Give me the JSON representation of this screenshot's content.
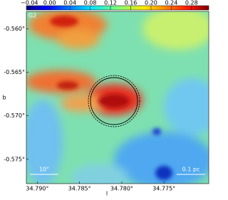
{
  "chart_data": {
    "type": "image",
    "x_label": "l",
    "y_label": "b",
    "xlim": [
      34.7913,
      34.7697
    ],
    "ylim": [
      -0.5778,
      -0.558
    ],
    "xticks": [
      {
        "value": 34.79,
        "label": "34.790°"
      },
      {
        "value": 34.785,
        "label": "34.785°"
      },
      {
        "value": 34.78,
        "label": "34.780°"
      },
      {
        "value": 34.775,
        "label": "34.775°"
      }
    ],
    "yticks": [
      {
        "value": -0.56,
        "label": "-0.560°"
      },
      {
        "value": -0.565,
        "label": "-0.565°"
      },
      {
        "value": -0.57,
        "label": "-0.570°"
      },
      {
        "value": -0.575,
        "label": "-0.575°"
      }
    ],
    "clim": [
      -0.046,
      0.314
    ],
    "cticks": [
      {
        "value": -0.04,
        "label": "−0.04"
      },
      {
        "value": 0,
        "label": "0.00"
      },
      {
        "value": 0.04,
        "label": "0.04"
      },
      {
        "value": 0.08,
        "label": "0.08"
      },
      {
        "value": 0.12,
        "label": "0.12"
      },
      {
        "value": 0.16,
        "label": "0.16"
      },
      {
        "value": 0.2,
        "label": "0.20"
      },
      {
        "value": 0.24,
        "label": "0.24"
      },
      {
        "value": 0.28,
        "label": "0.28"
      }
    ],
    "colormap": "jet",
    "annotations": [
      "G2",
      "10\"",
      "0.1 pc"
    ]
  }
}
